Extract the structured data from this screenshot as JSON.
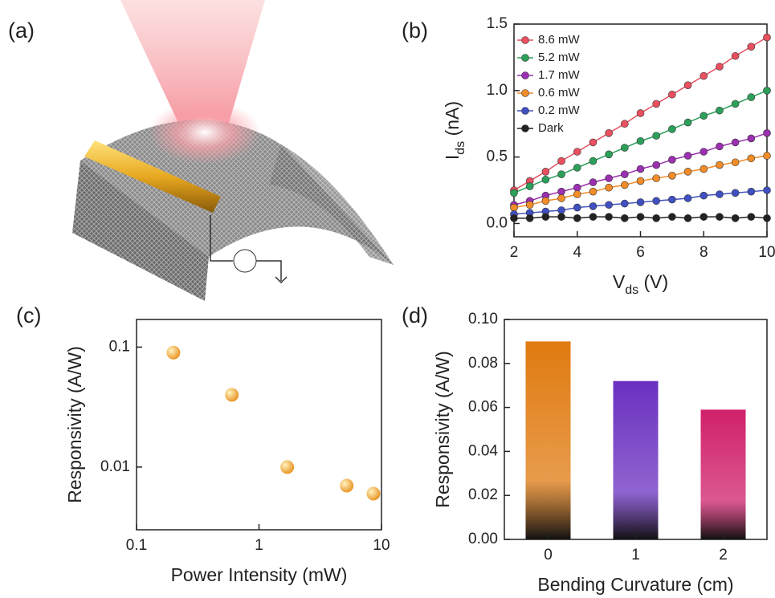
{
  "illustration": {
    "label": "(a)"
  },
  "chart_data": [
    {
      "type": "line",
      "label": "(b)",
      "x_label": [
        "V",
        "ds",
        " (V)"
      ],
      "y_label": [
        "I",
        "ds",
        " (nA)"
      ],
      "x": [
        2,
        2.5,
        3,
        3.5,
        4,
        4.5,
        5,
        5.5,
        6,
        6.5,
        7,
        7.5,
        8,
        8.5,
        9,
        9.5,
        10
      ],
      "xlim": [
        2,
        10
      ],
      "xticks": [
        2,
        4,
        6,
        8,
        10
      ],
      "ylim": [
        -0.1,
        1.5
      ],
      "yticks": [
        {
          "value": 0,
          "label": "0.0"
        },
        0.5,
        {
          "value": 1,
          "label": "1.0"
        },
        1.5
      ],
      "legend": "top-left",
      "series": [
        {
          "name": "8.6 mW",
          "color": "#e8505f",
          "values": [
            0.25,
            0.32,
            0.39,
            0.47,
            0.54,
            0.61,
            0.68,
            0.75,
            0.83,
            0.9,
            0.97,
            1.04,
            1.11,
            1.18,
            1.26,
            1.33,
            1.4
          ]
        },
        {
          "name": "5.2 mW",
          "color": "#2ca05a",
          "values": [
            0.23,
            0.28,
            0.33,
            0.37,
            0.42,
            0.47,
            0.52,
            0.57,
            0.62,
            0.66,
            0.71,
            0.76,
            0.81,
            0.85,
            0.9,
            0.95,
            1.0
          ]
        },
        {
          "name": "1.7 mW",
          "color": "#9b30b0",
          "values": [
            0.14,
            0.17,
            0.21,
            0.24,
            0.27,
            0.31,
            0.34,
            0.37,
            0.41,
            0.44,
            0.48,
            0.51,
            0.54,
            0.58,
            0.61,
            0.64,
            0.68
          ]
        },
        {
          "name": "0.6 mW",
          "color": "#f28c28",
          "values": [
            0.12,
            0.14,
            0.17,
            0.19,
            0.22,
            0.24,
            0.27,
            0.29,
            0.32,
            0.34,
            0.36,
            0.39,
            0.41,
            0.44,
            0.46,
            0.49,
            0.51
          ]
        },
        {
          "name": "0.2 mW",
          "color": "#4050c0",
          "values": [
            0.07,
            0.08,
            0.09,
            0.1,
            0.12,
            0.13,
            0.14,
            0.15,
            0.16,
            0.17,
            0.18,
            0.19,
            0.21,
            0.22,
            0.23,
            0.24,
            0.25
          ]
        },
        {
          "name": "Dark",
          "color": "#222222",
          "values": [
            0.04,
            0.04,
            0.05,
            0.05,
            0.04,
            0.05,
            0.05,
            0.04,
            0.05,
            0.04,
            0.05,
            0.04,
            0.05,
            0.05,
            0.04,
            0.05,
            0.04
          ]
        }
      ]
    },
    {
      "type": "scatter",
      "label": "(c)",
      "x_label": "Power Intensity (mW)",
      "y_label": "Responsivity (A/W)",
      "x": [
        0.2,
        0.6,
        1.7,
        5.2,
        8.6
      ],
      "values": [
        0.09,
        0.04,
        0.01,
        0.007,
        0.006
      ],
      "color": "#e8901e",
      "xscale": "log",
      "yscale": "log",
      "xlim": [
        0.1,
        10
      ],
      "xticks": [
        0.1,
        1,
        10
      ],
      "ylim": [
        0.003,
        0.17
      ],
      "yticks": [
        0.01,
        0.1
      ]
    },
    {
      "type": "bar",
      "label": "(d)",
      "x_label": "Bending Curvature (cm)",
      "y_label": "Responsivity (A/W)",
      "categories": [
        "0",
        "1",
        "2"
      ],
      "values": [
        0.09,
        0.072,
        0.059
      ],
      "colors": [
        "#e07a10",
        "#6a30c0",
        "#d0206a"
      ],
      "ylim": [
        0,
        0.1
      ],
      "yticks": [
        {
          "value": 0,
          "label": "0.00"
        },
        0.02,
        0.04,
        0.06,
        0.08,
        {
          "value": 0.1,
          "label": "0.10"
        }
      ]
    }
  ]
}
